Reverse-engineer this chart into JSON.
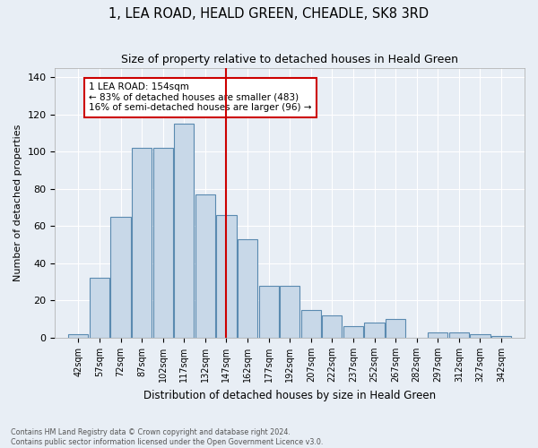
{
  "title": "1, LEA ROAD, HEALD GREEN, CHEADLE, SK8 3RD",
  "subtitle": "Size of property relative to detached houses in Heald Green",
  "xlabel": "Distribution of detached houses by size in Heald Green",
  "ylabel": "Number of detached properties",
  "bar_color": "#c8d8e8",
  "bar_edge_color": "#5a8ab0",
  "bg_color": "#e8eef5",
  "grid_color": "#ffffff",
  "vline_x": 154,
  "vline_color": "#cc0000",
  "annotation_text": "1 LEA ROAD: 154sqm\n← 83% of detached houses are smaller (483)\n16% of semi-detached houses are larger (96) →",
  "footer_line1": "Contains HM Land Registry data © Crown copyright and database right 2024.",
  "footer_line2": "Contains public sector information licensed under the Open Government Licence v3.0.",
  "bin_starts": [
    42,
    57,
    72,
    87,
    102,
    117,
    132,
    147,
    162,
    177,
    192,
    207,
    222,
    237,
    252,
    267,
    282,
    297,
    312,
    327,
    342
  ],
  "counts": [
    2,
    32,
    65,
    102,
    102,
    115,
    77,
    66,
    53,
    28,
    28,
    15,
    12,
    6,
    8,
    10,
    0,
    3,
    3,
    2,
    1
  ],
  "bin_width": 15,
  "ylim": [
    0,
    145
  ],
  "yticks": [
    0,
    20,
    40,
    60,
    80,
    100,
    120,
    140
  ]
}
